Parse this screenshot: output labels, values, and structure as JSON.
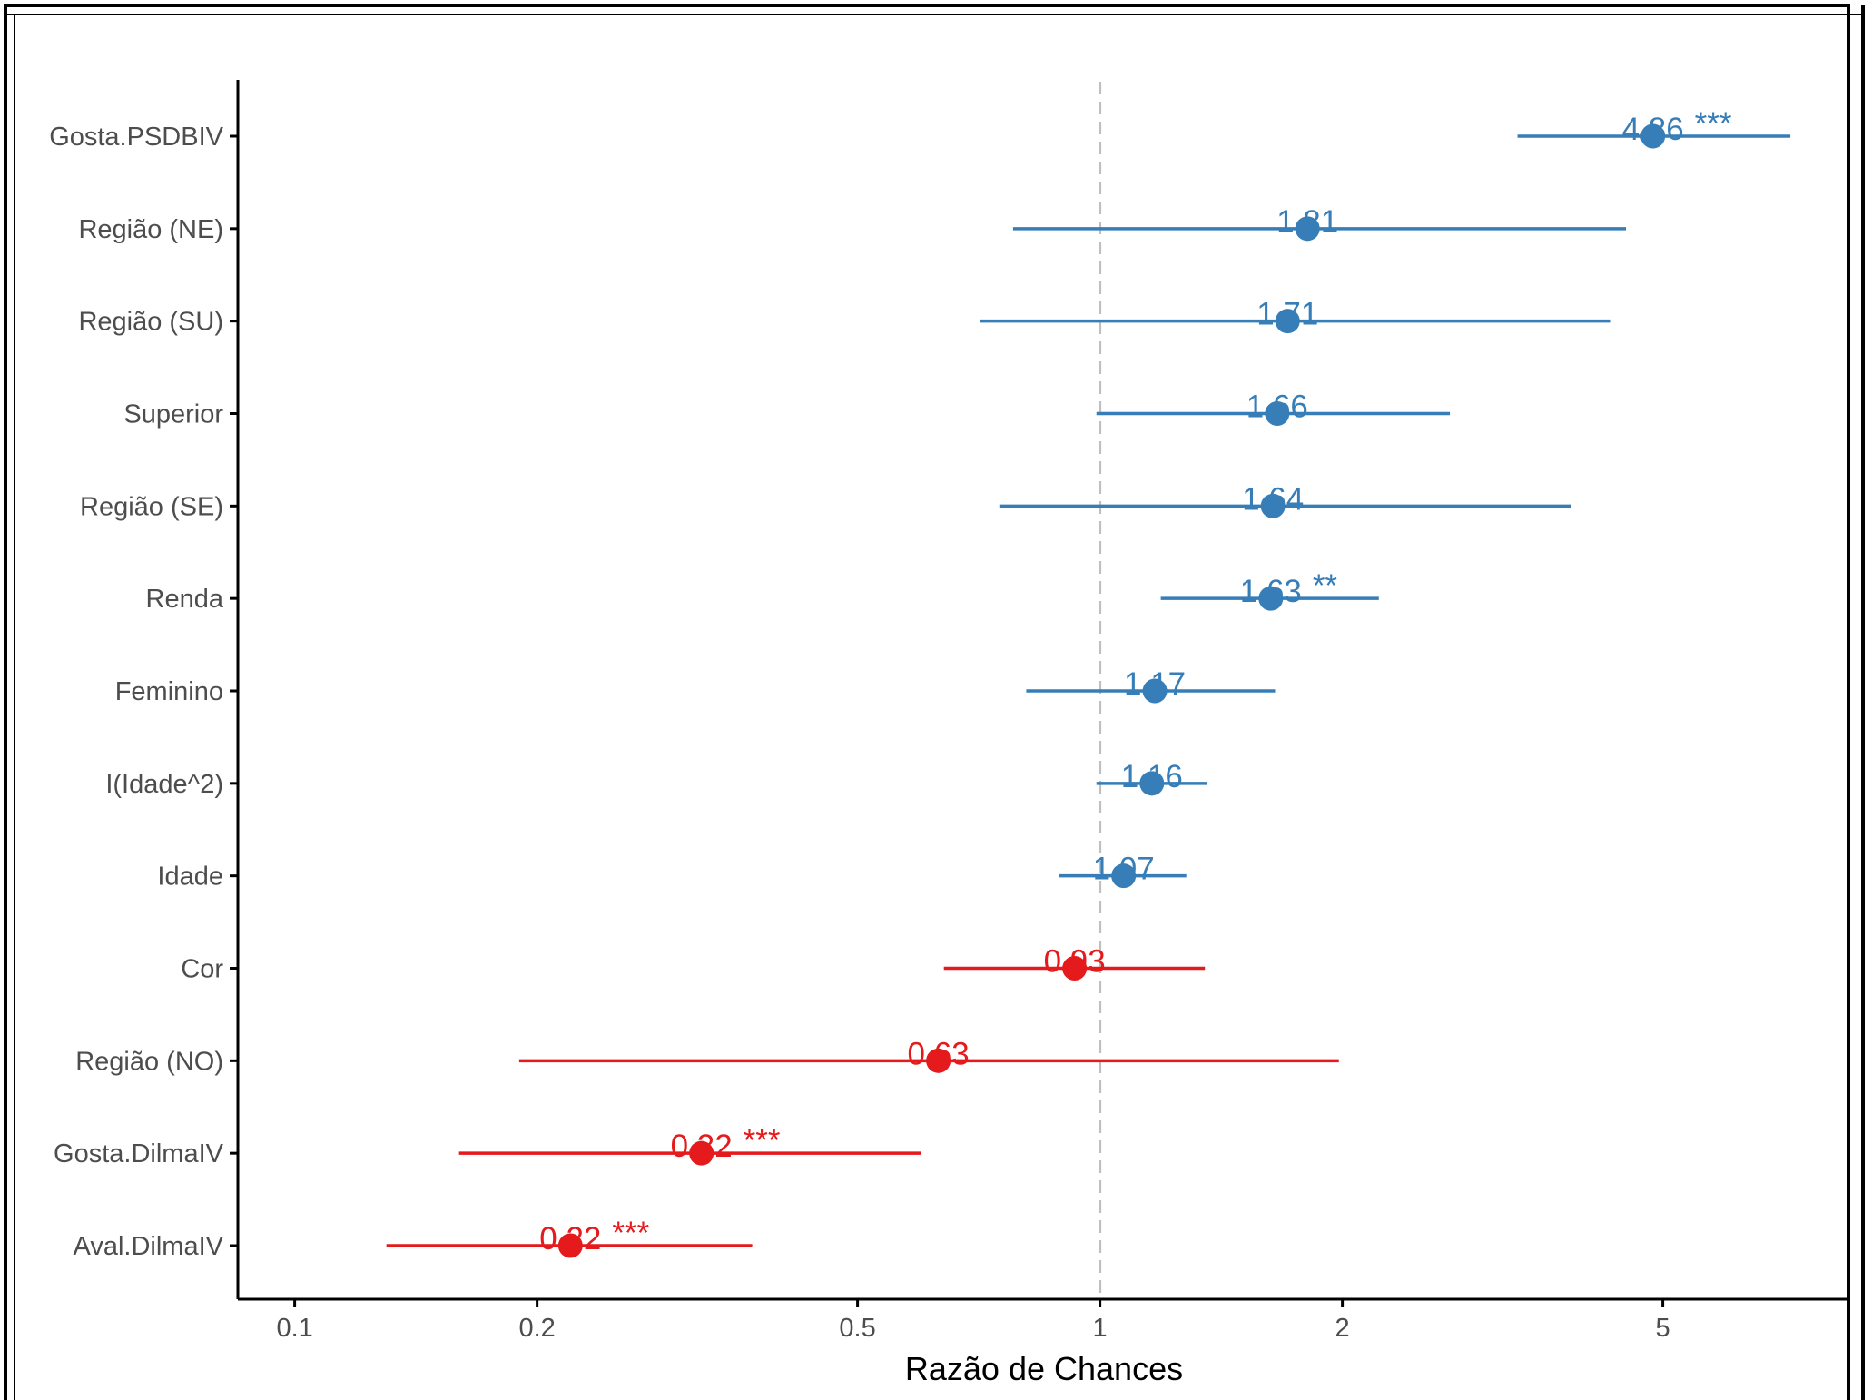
{
  "chart_data": {
    "type": "forest",
    "title": "",
    "xlabel": "Razão de Chances",
    "ylabel": "",
    "x_scale": "log",
    "xlim": [
      0.085,
      8.5
    ],
    "reference_line": 1,
    "x_ticks": [
      {
        "value": 0.1,
        "label": "0.1"
      },
      {
        "value": 0.2,
        "label": "0.2"
      },
      {
        "value": 0.5,
        "label": "0.5"
      },
      {
        "value": 1,
        "label": "1"
      },
      {
        "value": 2,
        "label": "2"
      },
      {
        "value": 5,
        "label": "5"
      }
    ],
    "colors": {
      "positive": "#377EB8",
      "negative": "#E41A1C",
      "reference": "#bfbfbf",
      "axis": "#000000"
    },
    "grid": false,
    "legend": "none",
    "rows": [
      {
        "label": "Gosta.PSDBIV",
        "estimate": 4.86,
        "low": 3.3,
        "high": 7.2,
        "text": "4.86 ***",
        "sign": "positive"
      },
      {
        "label": "Região (NE)",
        "estimate": 1.81,
        "low": 0.78,
        "high": 4.5,
        "text": "1.81",
        "sign": "positive"
      },
      {
        "label": "Região (SU)",
        "estimate": 1.71,
        "low": 0.71,
        "high": 4.3,
        "text": "1.71",
        "sign": "positive"
      },
      {
        "label": "Superior",
        "estimate": 1.66,
        "low": 0.99,
        "high": 2.72,
        "text": "1.66",
        "sign": "positive"
      },
      {
        "label": "Região (SE)",
        "estimate": 1.64,
        "low": 0.75,
        "high": 3.85,
        "text": "1.64",
        "sign": "positive"
      },
      {
        "label": "Renda",
        "estimate": 1.63,
        "low": 1.19,
        "high": 2.22,
        "text": "1.63 **",
        "sign": "positive"
      },
      {
        "label": "Feminino",
        "estimate": 1.17,
        "low": 0.81,
        "high": 1.65,
        "text": "1.17",
        "sign": "positive"
      },
      {
        "label": "I(Idade^2)",
        "estimate": 1.16,
        "low": 0.99,
        "high": 1.36,
        "text": "1.16",
        "sign": "positive"
      },
      {
        "label": "Idade",
        "estimate": 1.07,
        "low": 0.89,
        "high": 1.28,
        "text": "1.07",
        "sign": "positive"
      },
      {
        "label": "Cor",
        "estimate": 0.93,
        "low": 0.64,
        "high": 1.35,
        "text": "0.93",
        "sign": "negative"
      },
      {
        "label": "Região (NO)",
        "estimate": 0.63,
        "low": 0.19,
        "high": 1.98,
        "text": "0.63",
        "sign": "negative"
      },
      {
        "label": "Gosta.DilmaIV",
        "estimate": 0.32,
        "low": 0.16,
        "high": 0.6,
        "text": "0.32 ***",
        "sign": "negative"
      },
      {
        "label": "Aval.DilmaIV",
        "estimate": 0.22,
        "low": 0.13,
        "high": 0.37,
        "text": "0.22 ***",
        "sign": "negative"
      }
    ]
  }
}
